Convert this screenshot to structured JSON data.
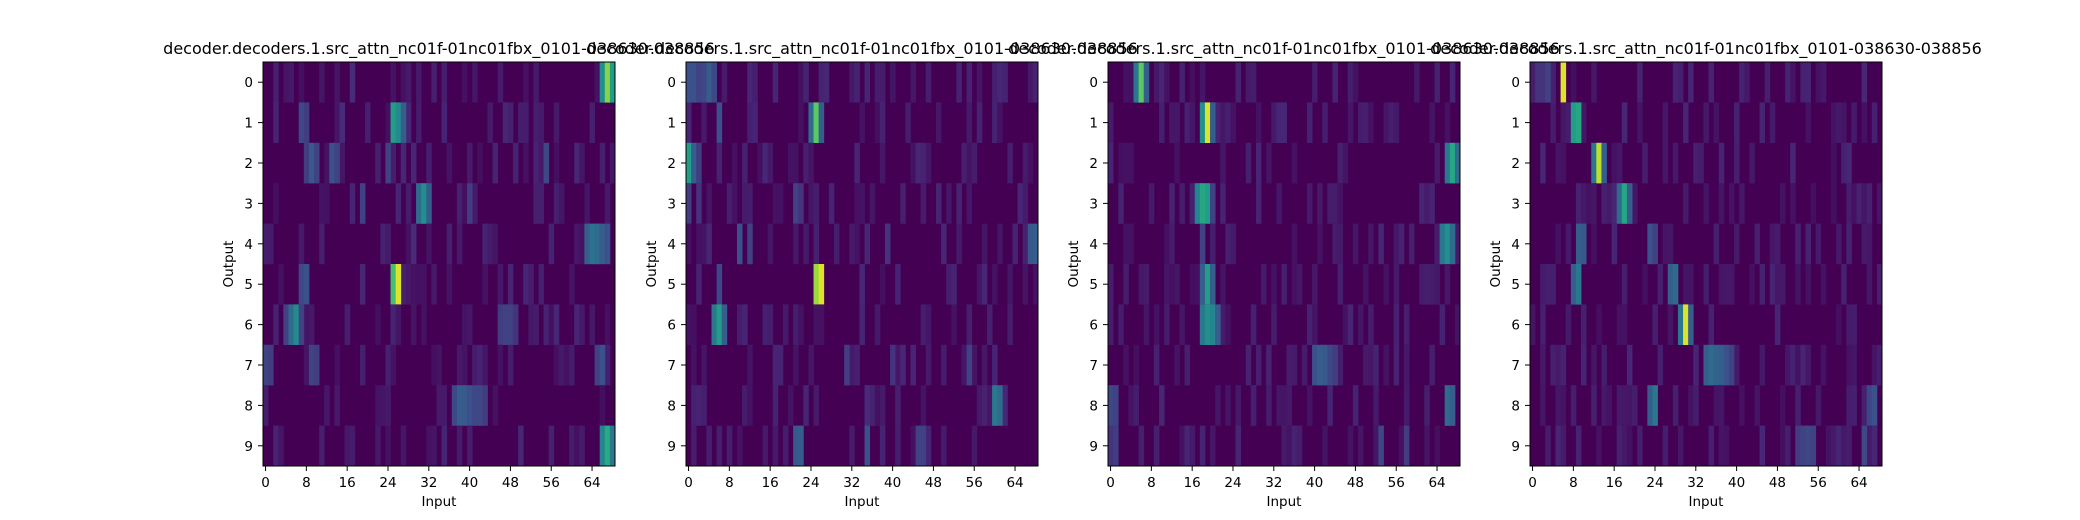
{
  "chart_data": [
    {
      "type": "heatmap",
      "title": "decoder.decoders.1.src_attn_nc01f-01nc01fbx_0101-038630-038856",
      "xlabel": "Input",
      "ylabel": "Output",
      "xticks": [
        "0",
        "8",
        "16",
        "24",
        "32",
        "40",
        "48",
        "56",
        "64"
      ],
      "yticks": [
        "0",
        "1",
        "2",
        "3",
        "4",
        "5",
        "6",
        "7",
        "8",
        "9"
      ],
      "input_len": 69,
      "output_len": 10,
      "colormap": "viridis",
      "rows": [
        [
          [
            17,
            0.12
          ],
          [
            66,
            0.5
          ],
          [
            67,
            0.82
          ],
          [
            68,
            0.55
          ]
        ],
        [
          [
            7,
            0.22
          ],
          [
            8,
            0.18
          ],
          [
            15,
            0.12
          ],
          [
            25,
            0.55
          ],
          [
            26,
            0.48
          ],
          [
            27,
            0.3
          ]
        ],
        [
          [
            8,
            0.18
          ],
          [
            9,
            0.28
          ],
          [
            10,
            0.2
          ],
          [
            13,
            0.25
          ],
          [
            14,
            0.2
          ],
          [
            24,
            0.2
          ],
          [
            55,
            0.22
          ]
        ],
        [
          [
            19,
            0.2
          ],
          [
            30,
            0.35
          ],
          [
            31,
            0.5
          ],
          [
            32,
            0.3
          ],
          [
            40,
            0.18
          ]
        ],
        [
          [
            29,
            0.12
          ],
          [
            63,
            0.3
          ],
          [
            64,
            0.38
          ],
          [
            65,
            0.35
          ],
          [
            66,
            0.3
          ],
          [
            67,
            0.25
          ]
        ],
        [
          [
            7,
            0.22
          ],
          [
            8,
            0.25
          ],
          [
            25,
            0.7
          ],
          [
            26,
            0.95
          ]
        ],
        [
          [
            4,
            0.2
          ],
          [
            5,
            0.35
          ],
          [
            6,
            0.48
          ],
          [
            7,
            0.2
          ],
          [
            46,
            0.18
          ],
          [
            47,
            0.2
          ],
          [
            48,
            0.2
          ],
          [
            49,
            0.15
          ]
        ],
        [
          [
            0,
            0.2
          ],
          [
            1,
            0.18
          ],
          [
            9,
            0.2
          ],
          [
            10,
            0.18
          ],
          [
            65,
            0.2
          ],
          [
            66,
            0.25
          ]
        ],
        [
          [
            37,
            0.22
          ],
          [
            38,
            0.3
          ],
          [
            39,
            0.28
          ],
          [
            40,
            0.25
          ],
          [
            41,
            0.22
          ],
          [
            42,
            0.22
          ],
          [
            43,
            0.18
          ]
        ],
        [
          [
            66,
            0.45
          ],
          [
            67,
            0.62
          ],
          [
            68,
            0.4
          ]
        ]
      ]
    },
    {
      "type": "heatmap",
      "title": "decoder.decoders.1.src_attn_nc01f-01nc01fbx_0101-038630-038856",
      "xlabel": "Input",
      "ylabel": "Output",
      "xticks": [
        "0",
        "8",
        "16",
        "24",
        "32",
        "40",
        "48",
        "56",
        "64"
      ],
      "yticks": [
        "0",
        "1",
        "2",
        "3",
        "4",
        "5",
        "6",
        "7",
        "8",
        "9"
      ],
      "input_len": 69,
      "output_len": 10,
      "colormap": "viridis",
      "rows": [
        [
          [
            0,
            0.25
          ],
          [
            1,
            0.25
          ],
          [
            2,
            0.2
          ],
          [
            3,
            0.22
          ],
          [
            4,
            0.3
          ],
          [
            5,
            0.22
          ]
        ],
        [
          [
            6,
            0.25
          ],
          [
            24,
            0.35
          ],
          [
            25,
            0.75
          ],
          [
            26,
            0.3
          ]
        ],
        [
          [
            0,
            0.55
          ],
          [
            1,
            0.3
          ],
          [
            2,
            0.18
          ]
        ],
        [
          [
            0,
            0.18
          ],
          [
            2,
            0.15
          ],
          [
            21,
            0.2
          ],
          [
            22,
            0.15
          ]
        ],
        [
          [
            10,
            0.25
          ],
          [
            12,
            0.2
          ],
          [
            39,
            0.15
          ],
          [
            67,
            0.28
          ],
          [
            68,
            0.3
          ]
        ],
        [
          [
            6,
            0.22
          ],
          [
            25,
            0.85
          ],
          [
            26,
            0.95
          ]
        ],
        [
          [
            5,
            0.4
          ],
          [
            6,
            0.55
          ],
          [
            7,
            0.3
          ]
        ],
        [
          [
            31,
            0.18
          ],
          [
            40,
            0.15
          ],
          [
            55,
            0.2
          ]
        ],
        [
          [
            35,
            0.12
          ],
          [
            60,
            0.4
          ],
          [
            61,
            0.35
          ]
        ],
        [
          [
            21,
            0.28
          ],
          [
            22,
            0.3
          ],
          [
            35,
            0.25
          ],
          [
            45,
            0.2
          ],
          [
            46,
            0.2
          ]
        ]
      ]
    },
    {
      "type": "heatmap",
      "title": "decoder.decoders.1.src_attn_nc01f-01nc01fbx_0101-038630-038856",
      "xlabel": "Input",
      "ylabel": "Output",
      "xticks": [
        "0",
        "8",
        "16",
        "24",
        "32",
        "40",
        "48",
        "56",
        "64"
      ],
      "yticks": [
        "0",
        "1",
        "2",
        "3",
        "4",
        "5",
        "6",
        "7",
        "8",
        "9"
      ],
      "input_len": 69,
      "output_len": 10,
      "colormap": "viridis",
      "rows": [
        [
          [
            5,
            0.4
          ],
          [
            6,
            0.75
          ],
          [
            7,
            0.3
          ]
        ],
        [
          [
            18,
            0.5
          ],
          [
            19,
            0.95
          ],
          [
            20,
            0.3
          ]
        ],
        [
          [
            66,
            0.4
          ],
          [
            67,
            0.6
          ],
          [
            68,
            0.35
          ]
        ],
        [
          [
            17,
            0.45
          ],
          [
            18,
            0.6
          ],
          [
            19,
            0.55
          ],
          [
            20,
            0.2
          ]
        ],
        [
          [
            18,
            0.2
          ],
          [
            65,
            0.4
          ],
          [
            66,
            0.5
          ],
          [
            67,
            0.35
          ]
        ],
        [
          [
            18,
            0.3
          ],
          [
            19,
            0.55
          ],
          [
            20,
            0.3
          ]
        ],
        [
          [
            18,
            0.4
          ],
          [
            19,
            0.5
          ],
          [
            20,
            0.45
          ],
          [
            21,
            0.3
          ]
        ],
        [
          [
            40,
            0.25
          ],
          [
            41,
            0.3
          ],
          [
            42,
            0.28
          ],
          [
            43,
            0.22
          ],
          [
            44,
            0.18
          ]
        ],
        [
          [
            0,
            0.22
          ],
          [
            1,
            0.2
          ],
          [
            66,
            0.35
          ],
          [
            67,
            0.3
          ]
        ],
        [
          [
            0,
            0.15
          ],
          [
            1,
            0.18
          ],
          [
            53,
            0.22
          ],
          [
            58,
            0.18
          ]
        ]
      ]
    },
    {
      "type": "heatmap",
      "title": "decoder.decoders.1.src_attn_nc01f-01nc01fbx_0101-038630-038856",
      "xlabel": "Input",
      "ylabel": "Output",
      "xticks": [
        "0",
        "8",
        "16",
        "24",
        "32",
        "40",
        "48",
        "56",
        "64"
      ],
      "yticks": [
        "0",
        "1",
        "2",
        "3",
        "4",
        "5",
        "6",
        "7",
        "8",
        "9"
      ],
      "input_len": 69,
      "output_len": 10,
      "colormap": "viridis",
      "rows": [
        [
          [
            1,
            0.15
          ],
          [
            2,
            0.15
          ],
          [
            3,
            0.2
          ],
          [
            6,
            0.95
          ]
        ],
        [
          [
            8,
            0.55
          ],
          [
            9,
            0.6
          ]
        ],
        [
          [
            12,
            0.4
          ],
          [
            13,
            0.9
          ],
          [
            14,
            0.3
          ]
        ],
        [
          [
            17,
            0.35
          ],
          [
            18,
            0.6
          ],
          [
            19,
            0.3
          ]
        ],
        [
          [
            9,
            0.3
          ],
          [
            10,
            0.28
          ],
          [
            23,
            0.25
          ],
          [
            24,
            0.2
          ]
        ],
        [
          [
            8,
            0.3
          ],
          [
            9,
            0.4
          ],
          [
            27,
            0.3
          ],
          [
            28,
            0.35
          ]
        ],
        [
          [
            29,
            0.4
          ],
          [
            30,
            0.95
          ],
          [
            31,
            0.3
          ]
        ],
        [
          [
            34,
            0.3
          ],
          [
            35,
            0.35
          ],
          [
            36,
            0.32
          ],
          [
            37,
            0.3
          ],
          [
            38,
            0.25
          ],
          [
            39,
            0.2
          ]
        ],
        [
          [
            23,
            0.3
          ],
          [
            24,
            0.4
          ],
          [
            66,
            0.22
          ],
          [
            67,
            0.25
          ]
        ],
        [
          [
            52,
            0.18
          ],
          [
            53,
            0.2
          ],
          [
            54,
            0.22
          ],
          [
            55,
            0.2
          ],
          [
            65,
            0.22
          ]
        ]
      ]
    }
  ]
}
